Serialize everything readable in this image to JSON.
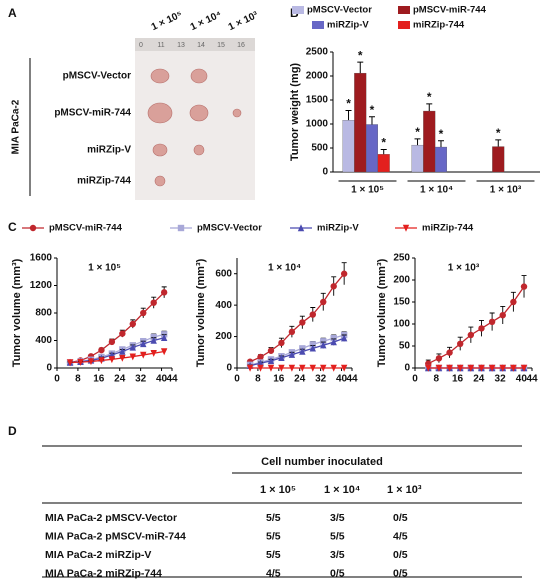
{
  "panel_labels": [
    "A",
    "B",
    "C",
    "D"
  ],
  "panel_a": {
    "columns": [
      "1 × 10⁵",
      "1 × 10⁴",
      "1 × 10³"
    ],
    "ruler": [
      "0",
      "11",
      "13",
      "14",
      "15",
      "16"
    ],
    "group": "MIA PaCa-2",
    "rows": [
      "pMSCV-Vector",
      "pMSCV-miR-744",
      "miRZip-V",
      "miRZip-744"
    ]
  },
  "chart_data": [
    {
      "type": "bar",
      "ylabel": "Tumor weight (mg)",
      "categories": [
        "1 × 10⁵",
        "1 × 10⁴",
        "1 × 10³"
      ],
      "ylim": [
        0,
        2500
      ],
      "yticks": [
        0,
        500,
        1000,
        1500,
        2000,
        2500
      ],
      "legend": "top",
      "series": [
        {
          "name": "pMSCV-Vector",
          "color": "#b9b9e3",
          "values": [
            1080,
            560,
            null
          ],
          "errors": [
            200,
            130,
            null
          ],
          "significance": [
            "*",
            "*",
            null
          ]
        },
        {
          "name": "pMSCV-miR-744",
          "color": "#9e1b1f",
          "values": [
            2060,
            1270,
            530
          ],
          "errors": [
            230,
            150,
            140
          ],
          "significance": [
            "*",
            "*",
            "*"
          ]
        },
        {
          "name": "miRZip-V",
          "color": "#6767c6",
          "values": [
            990,
            520,
            null
          ],
          "errors": [
            160,
            130,
            null
          ],
          "significance": [
            "*",
            "*",
            null
          ]
        },
        {
          "name": "miRZip-744",
          "color": "#e3201e",
          "values": [
            370,
            null,
            null
          ],
          "errors": [
            100,
            null,
            null
          ],
          "significance": [
            "*",
            null,
            null
          ]
        }
      ]
    },
    {
      "type": "line",
      "title": "1 × 10⁵",
      "ylabel": "Tumor volume (mm³)",
      "xlim": [
        0,
        44
      ],
      "xticks": [
        0,
        8,
        16,
        24,
        32,
        40,
        44
      ],
      "ylim": [
        0,
        1600
      ],
      "yticks": [
        0,
        400,
        800,
        1200,
        1600
      ],
      "series": [
        {
          "name": "pMSCV-miR-744",
          "color": "#c0272d",
          "marker": "circle",
          "x": [
            5,
            9,
            13,
            17,
            21,
            25,
            29,
            33,
            37,
            41
          ],
          "values": [
            80,
            110,
            170,
            260,
            380,
            500,
            640,
            800,
            950,
            1100
          ],
          "errors": [
            10,
            15,
            20,
            30,
            40,
            50,
            60,
            70,
            80,
            80
          ]
        },
        {
          "name": "pMSCV-Vector",
          "color": "#a8a8d8",
          "marker": "square",
          "x": [
            5,
            9,
            13,
            17,
            21,
            25,
            29,
            33,
            37,
            41
          ],
          "values": [
            80,
            95,
            120,
            160,
            210,
            270,
            330,
            390,
            450,
            490
          ],
          "errors": [
            10,
            12,
            15,
            20,
            25,
            30,
            35,
            40,
            45,
            45
          ]
        },
        {
          "name": "miRZip-V",
          "color": "#4b4bb0",
          "marker": "triangle",
          "x": [
            5,
            9,
            13,
            17,
            21,
            25,
            29,
            33,
            37,
            41
          ],
          "values": [
            80,
            90,
            110,
            140,
            190,
            240,
            300,
            350,
            400,
            440
          ],
          "errors": [
            10,
            12,
            15,
            20,
            25,
            30,
            35,
            40,
            40,
            45
          ]
        },
        {
          "name": "miRZip-744",
          "color": "#e3201e",
          "marker": "triangle-down",
          "x": [
            5,
            9,
            13,
            17,
            21,
            25,
            29,
            33,
            37,
            41
          ],
          "values": [
            80,
            85,
            95,
            110,
            125,
            145,
            165,
            190,
            215,
            240
          ],
          "errors": [
            8,
            10,
            10,
            12,
            15,
            15,
            20,
            20,
            25,
            25
          ]
        }
      ]
    },
    {
      "type": "line",
      "title": "1 × 10⁴",
      "ylabel": "Tumor volume (mm³)",
      "xlim": [
        0,
        44
      ],
      "xticks": [
        0,
        8,
        16,
        24,
        32,
        40,
        44
      ],
      "ylim": [
        0,
        700
      ],
      "yticks": [
        0,
        200,
        400,
        600
      ],
      "series": [
        {
          "name": "pMSCV-miR-744",
          "color": "#c0272d",
          "marker": "circle",
          "x": [
            5,
            9,
            13,
            17,
            21,
            25,
            29,
            33,
            37,
            41
          ],
          "values": [
            40,
            70,
            110,
            160,
            230,
            290,
            340,
            420,
            520,
            600
          ],
          "errors": [
            10,
            15,
            20,
            30,
            35,
            40,
            45,
            55,
            60,
            70
          ]
        },
        {
          "name": "pMSCV-Vector",
          "color": "#a8a8d8",
          "marker": "square",
          "x": [
            5,
            9,
            13,
            17,
            21,
            25,
            29,
            33,
            37,
            41
          ],
          "values": [
            20,
            35,
            55,
            75,
            100,
            125,
            150,
            170,
            190,
            210
          ],
          "errors": [
            5,
            8,
            10,
            12,
            15,
            15,
            18,
            20,
            20,
            20
          ]
        },
        {
          "name": "miRZip-V",
          "color": "#4b4bb0",
          "marker": "triangle",
          "x": [
            5,
            9,
            13,
            17,
            21,
            25,
            29,
            33,
            37,
            41
          ],
          "values": [
            15,
            30,
            45,
            65,
            85,
            105,
            125,
            145,
            165,
            190
          ],
          "errors": [
            5,
            8,
            10,
            12,
            15,
            15,
            18,
            20,
            20,
            20
          ]
        },
        {
          "name": "miRZip-744",
          "color": "#e3201e",
          "marker": "triangle-down",
          "x": [
            5,
            9,
            13,
            17,
            21,
            25,
            29,
            33,
            37,
            41
          ],
          "values": [
            0,
            0,
            0,
            0,
            0,
            0,
            0,
            0,
            0,
            0
          ],
          "errors": [
            0,
            0,
            0,
            0,
            0,
            0,
            0,
            0,
            0,
            0
          ]
        }
      ]
    },
    {
      "type": "line",
      "title": "1 × 10³",
      "ylabel": "Tumor volume (mm³)",
      "xlim": [
        0,
        44
      ],
      "xticks": [
        0,
        8,
        16,
        24,
        32,
        40,
        44
      ],
      "ylim": [
        0,
        250
      ],
      "yticks": [
        0,
        50,
        100,
        150,
        200,
        250
      ],
      "series": [
        {
          "name": "pMSCV-miR-744",
          "color": "#c0272d",
          "marker": "circle",
          "x": [
            5,
            9,
            13,
            17,
            21,
            25,
            29,
            33,
            37,
            41
          ],
          "values": [
            10,
            22,
            35,
            55,
            75,
            90,
            105,
            120,
            150,
            185
          ],
          "errors": [
            8,
            10,
            12,
            15,
            18,
            18,
            20,
            20,
            22,
            25
          ]
        },
        {
          "name": "pMSCV-Vector",
          "color": "#a8a8d8",
          "marker": "square",
          "x": [
            5,
            9,
            13,
            17,
            21,
            25,
            29,
            33,
            37,
            41
          ],
          "values": [
            0,
            0,
            0,
            0,
            0,
            0,
            0,
            0,
            0,
            0
          ],
          "errors": [
            0,
            0,
            0,
            0,
            0,
            0,
            0,
            0,
            0,
            0
          ]
        },
        {
          "name": "miRZip-V",
          "color": "#4b4bb0",
          "marker": "triangle",
          "x": [
            5,
            9,
            13,
            17,
            21,
            25,
            29,
            33,
            37,
            41
          ],
          "values": [
            0,
            0,
            0,
            0,
            0,
            0,
            0,
            0,
            0,
            0
          ],
          "errors": [
            0,
            0,
            0,
            0,
            0,
            0,
            0,
            0,
            0,
            0
          ]
        },
        {
          "name": "miRZip-744",
          "color": "#e3201e",
          "marker": "triangle-down",
          "x": [
            5,
            9,
            13,
            17,
            21,
            25,
            29,
            33,
            37,
            41
          ],
          "values": [
            0,
            0,
            0,
            0,
            0,
            0,
            0,
            0,
            0,
            0
          ],
          "errors": [
            0,
            0,
            0,
            0,
            0,
            0,
            0,
            0,
            0,
            0
          ]
        }
      ]
    }
  ],
  "table": {
    "header": "Cell number inoculated",
    "columns": [
      "1 × 10⁵",
      "1 × 10⁴",
      "1 × 10³"
    ],
    "rows": [
      [
        "MIA PaCa-2 pMSCV-Vector",
        "5/5",
        "3/5",
        "0/5"
      ],
      [
        "MIA PaCa-2 pMSCV-miR-744",
        "5/5",
        "5/5",
        "4/5"
      ],
      [
        "MIA PaCa-2 miRZip-V",
        "5/5",
        "3/5",
        "0/5"
      ],
      [
        "MIA PaCa-2 miRZip-744",
        "4/5",
        "0/5",
        "0/5"
      ]
    ]
  }
}
